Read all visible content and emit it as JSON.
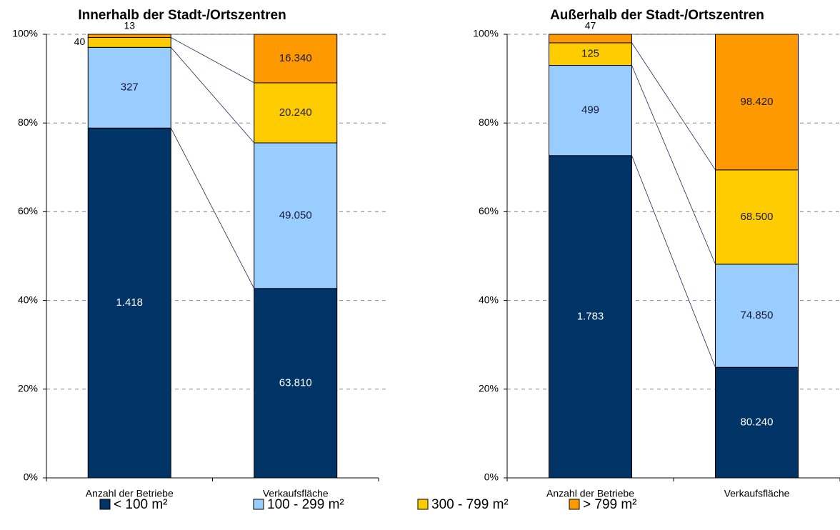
{
  "chart_data": [
    {
      "type": "bar",
      "stack": "percent",
      "title": "Innerhalb der Stadt-/Ortszentren",
      "categories": [
        "Anzahl der Betriebe",
        "Verkaufsfläche"
      ],
      "ylim": [
        0,
        100
      ],
      "yticks": [
        {
          "value": 0,
          "label": "0%"
        },
        {
          "value": 20,
          "label": "20%"
        },
        {
          "value": 40,
          "label": "40%"
        },
        {
          "value": 60,
          "label": "60%"
        },
        {
          "value": 80,
          "label": "80%"
        },
        {
          "value": 100,
          "label": "100%"
        }
      ],
      "grid": true,
      "legend": "bottom",
      "series": [
        {
          "name": "< 100 m²",
          "color": "#003366",
          "values": [
            1418,
            63810
          ],
          "value_labels": [
            "1.418",
            "63.810"
          ]
        },
        {
          "name": "100 - 299 m²",
          "color": "#99ccff",
          "values": [
            327,
            49050
          ],
          "value_labels": [
            "327",
            "49.050"
          ]
        },
        {
          "name": "300 - 799 m²",
          "color": "#ffcc00",
          "values": [
            40,
            20240
          ],
          "value_labels": [
            "40",
            "20.240"
          ]
        },
        {
          "name": "> 799 m²",
          "color": "#ff9900",
          "values": [
            13,
            16340
          ],
          "value_labels": [
            "13",
            "16.340"
          ]
        }
      ]
    },
    {
      "type": "bar",
      "stack": "percent",
      "title": "Außerhalb der Stadt-/Ortszentren",
      "categories": [
        "Anzahl der Betriebe",
        "Verkaufsfläche"
      ],
      "ylim": [
        0,
        100
      ],
      "yticks": [
        {
          "value": 0,
          "label": "0%"
        },
        {
          "value": 20,
          "label": "20%"
        },
        {
          "value": 40,
          "label": "40%"
        },
        {
          "value": 60,
          "label": "60%"
        },
        {
          "value": 80,
          "label": "80%"
        },
        {
          "value": 100,
          "label": "100%"
        }
      ],
      "grid": true,
      "series": [
        {
          "color": "#003366",
          "values": [
            1783,
            80240
          ],
          "value_labels": [
            "1.783",
            "80.240"
          ]
        },
        {
          "color": "#99ccff",
          "values": [
            499,
            74850
          ],
          "value_labels": [
            "499",
            "74.850"
          ]
        },
        {
          "color": "#ffcc00",
          "values": [
            125,
            68500
          ],
          "value_labels": [
            "125",
            "68.500"
          ]
        },
        {
          "color": "#ff9900",
          "values": [
            47,
            98420
          ],
          "value_labels": [
            "47",
            "98.420"
          ]
        }
      ]
    }
  ]
}
